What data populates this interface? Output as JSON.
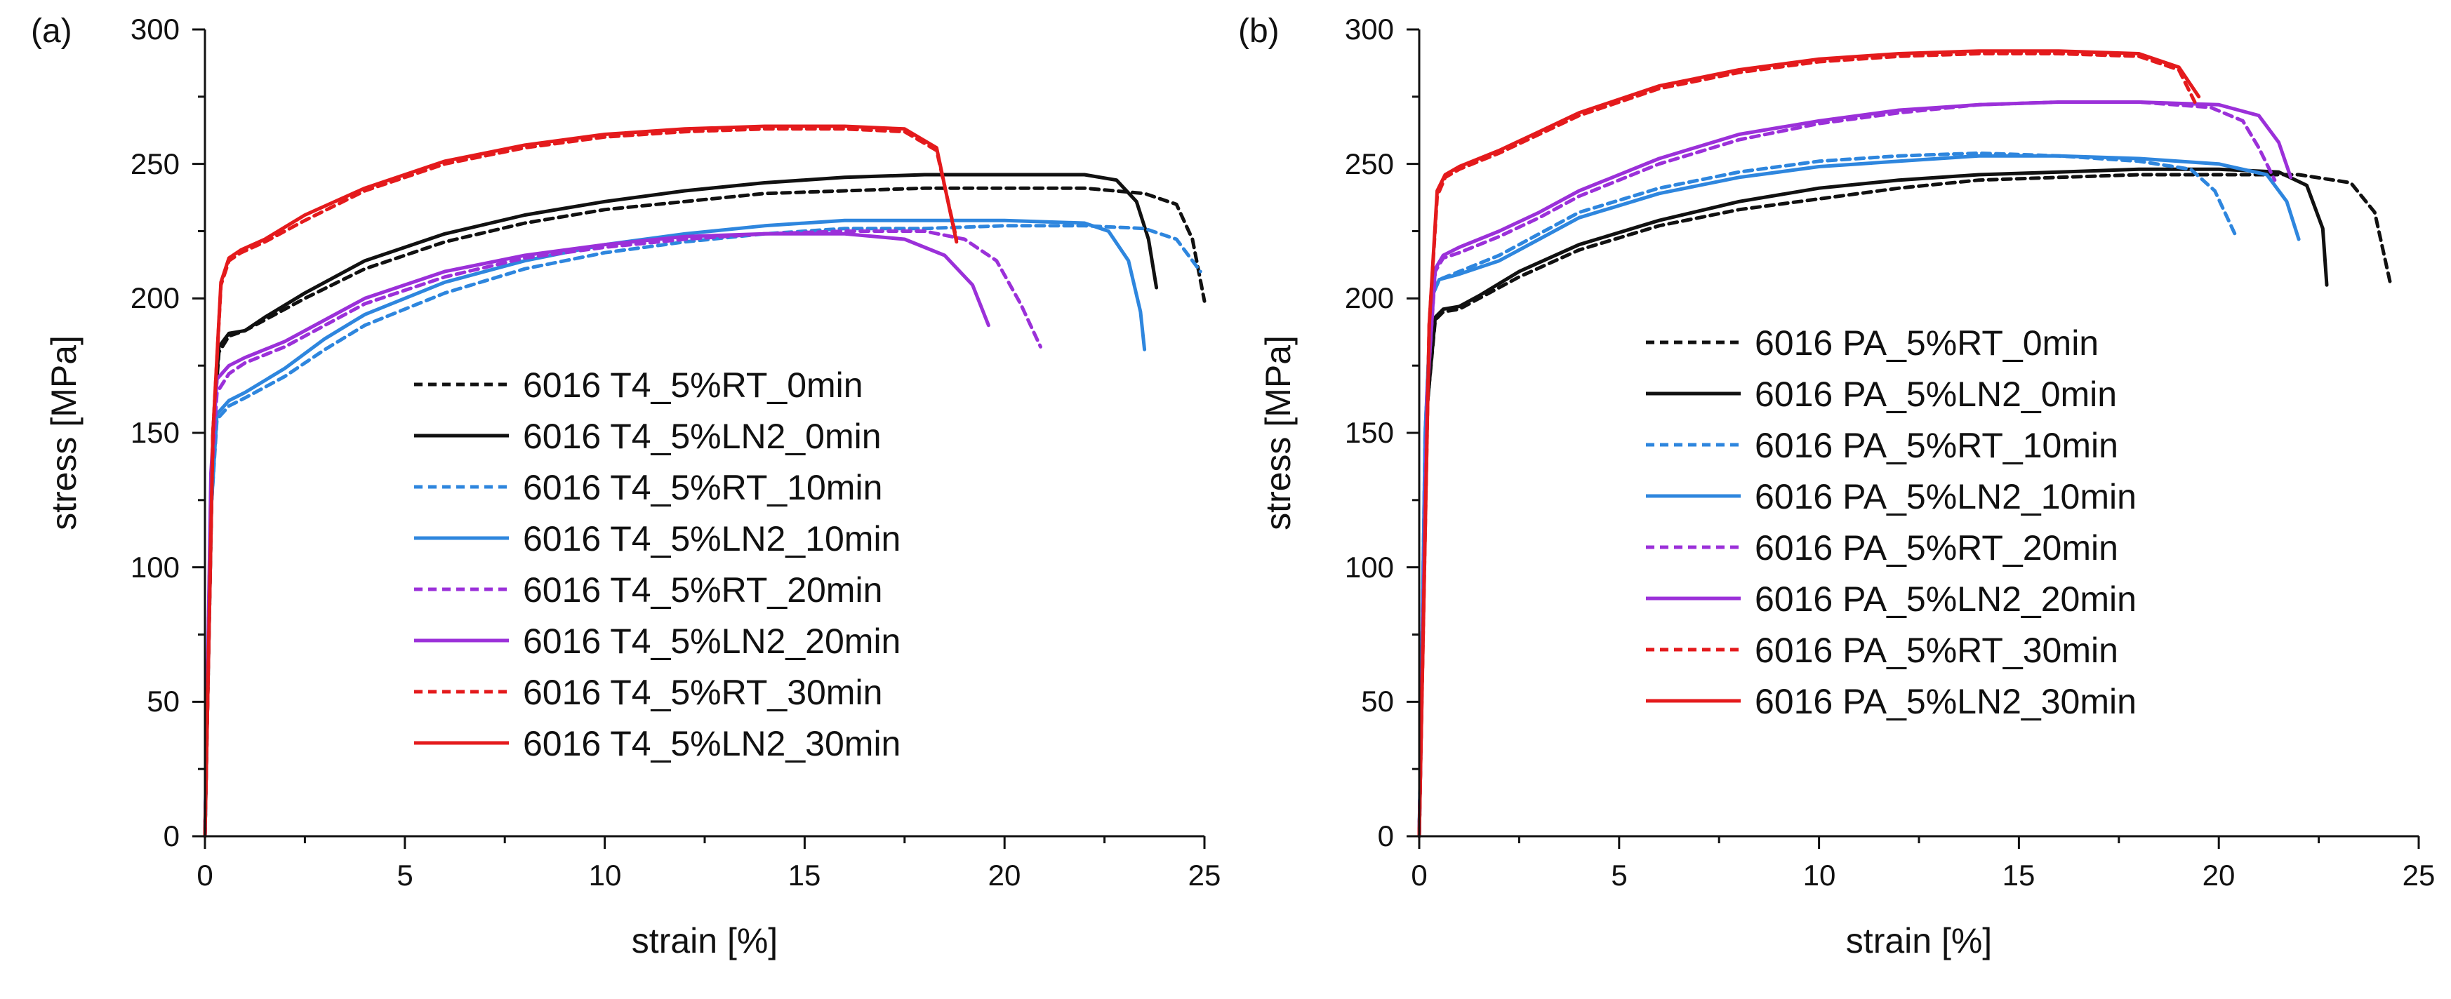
{
  "figure": {
    "colors": {
      "axis": "#111111"
    }
  },
  "chart_data": [
    {
      "panel_label": "(a)",
      "type": "line",
      "xlabel": "strain [%]",
      "ylabel": "stress [MPa]",
      "xlim": [
        0,
        25
      ],
      "ylim": [
        0,
        300
      ],
      "xticks": [
        "0",
        "5",
        "10",
        "15",
        "20",
        "25"
      ],
      "yticks": [
        "0",
        "50",
        "100",
        "150",
        "200",
        "250",
        "300"
      ],
      "grid": false,
      "legend_position": "center",
      "series": [
        {
          "name": "6016 T4_5%RT_0min",
          "color": "#111111",
          "style": "dashed",
          "x": [
            0,
            0.2,
            0.35,
            0.6,
            1.0,
            1.5,
            2.5,
            4,
            6,
            8,
            10,
            12,
            14,
            16,
            18,
            20,
            22,
            23.5,
            24.3,
            24.7,
            25.0
          ],
          "y": [
            0,
            150,
            180,
            186,
            188,
            192,
            200,
            211,
            221,
            228,
            233,
            236,
            239,
            240,
            241,
            241,
            241,
            239,
            235,
            222,
            199
          ]
        },
        {
          "name": "6016 T4_5%LN2_0min",
          "color": "#111111",
          "style": "solid",
          "x": [
            0,
            0.2,
            0.35,
            0.6,
            1.0,
            1.5,
            2.5,
            4,
            6,
            8,
            10,
            12,
            14,
            16,
            18,
            20,
            22,
            22.8,
            23.3,
            23.6,
            23.8
          ],
          "y": [
            0,
            150,
            182,
            187,
            188,
            193,
            202,
            214,
            224,
            231,
            236,
            240,
            243,
            245,
            246,
            246,
            246,
            244,
            236,
            222,
            204
          ]
        },
        {
          "name": "6016 T4_5%RT_10min",
          "color": "#2e86de",
          "style": "dashed",
          "x": [
            0,
            0.15,
            0.3,
            0.6,
            1,
            2,
            3,
            4,
            6,
            8,
            10,
            12,
            14,
            16,
            18,
            20,
            22,
            23.5,
            24.3,
            24.9
          ],
          "y": [
            0,
            120,
            155,
            160,
            163,
            171,
            181,
            190,
            202,
            211,
            217,
            221,
            224,
            226,
            226,
            227,
            227,
            226,
            222,
            210
          ]
        },
        {
          "name": "6016 T4_5%LN2_10min",
          "color": "#2e86de",
          "style": "solid",
          "x": [
            0,
            0.15,
            0.3,
            0.6,
            1,
            2,
            3,
            4,
            6,
            8,
            10,
            12,
            14,
            16,
            18,
            20,
            22,
            22.6,
            23.1,
            23.4,
            23.5
          ],
          "y": [
            0,
            120,
            157,
            162,
            165,
            174,
            185,
            194,
            206,
            214,
            220,
            224,
            227,
            229,
            229,
            229,
            228,
            225,
            214,
            195,
            181
          ]
        },
        {
          "name": "6016 T4_5%RT_20min",
          "color": "#9b30d9",
          "style": "dashed",
          "x": [
            0,
            0.15,
            0.3,
            0.6,
            1,
            2,
            3,
            4,
            6,
            8,
            10,
            12,
            14,
            16,
            18,
            19,
            19.8,
            20.4,
            20.9
          ],
          "y": [
            0,
            130,
            165,
            172,
            176,
            182,
            190,
            198,
            208,
            215,
            219,
            222,
            224,
            225,
            225,
            222,
            214,
            198,
            182
          ]
        },
        {
          "name": "6016 T4_5%LN2_20min",
          "color": "#9b30d9",
          "style": "solid",
          "x": [
            0,
            0.15,
            0.3,
            0.6,
            1,
            2,
            3,
            4,
            6,
            8,
            10,
            12,
            14,
            16,
            17.5,
            18.5,
            19.2,
            19.6
          ],
          "y": [
            0,
            135,
            170,
            175,
            178,
            184,
            192,
            200,
            210,
            216,
            220,
            223,
            224,
            224,
            222,
            216,
            205,
            190
          ]
        },
        {
          "name": "6016 T4_5%RT_30min",
          "color": "#e41a1c",
          "style": "dashed",
          "x": [
            0,
            0.2,
            0.4,
            0.6,
            0.9,
            1.5,
            2.5,
            4,
            6,
            8,
            10,
            12,
            14,
            16,
            17.5,
            18.3,
            18.8
          ],
          "y": [
            0,
            150,
            205,
            214,
            217,
            221,
            229,
            240,
            250,
            256,
            260,
            262,
            263,
            263,
            262,
            255,
            222
          ]
        },
        {
          "name": "6016 T4_5%LN2_30min",
          "color": "#e41a1c",
          "style": "solid",
          "x": [
            0,
            0.2,
            0.4,
            0.6,
            0.9,
            1.5,
            2.5,
            4,
            6,
            8,
            10,
            12,
            14,
            16,
            17.5,
            18.3,
            18.8
          ],
          "y": [
            0,
            150,
            206,
            215,
            218,
            222,
            231,
            241,
            251,
            257,
            261,
            263,
            264,
            264,
            263,
            256,
            221
          ]
        }
      ]
    },
    {
      "panel_label": "(b)",
      "type": "line",
      "xlabel": "strain [%]",
      "ylabel": "stress [MPa]",
      "xlim": [
        0,
        25
      ],
      "ylim": [
        0,
        300
      ],
      "xticks": [
        "0",
        "5",
        "10",
        "15",
        "20",
        "25"
      ],
      "yticks": [
        "0",
        "50",
        "100",
        "150",
        "200",
        "250",
        "300"
      ],
      "grid": false,
      "legend_position": "center-right",
      "series": [
        {
          "name": "6016 PA_5%RT_0min",
          "color": "#111111",
          "style": "dashed",
          "x": [
            0,
            0.2,
            0.4,
            0.6,
            1.0,
            1.5,
            2.5,
            4,
            6,
            8,
            10,
            12,
            14,
            16,
            18,
            20,
            22,
            23.3,
            23.9,
            24.3
          ],
          "y": [
            0,
            160,
            192,
            195,
            196,
            200,
            208,
            218,
            227,
            233,
            237,
            241,
            244,
            245,
            246,
            246,
            246,
            243,
            232,
            205
          ]
        },
        {
          "name": "6016 PA_5%LN2_0min",
          "color": "#111111",
          "style": "solid",
          "x": [
            0,
            0.2,
            0.4,
            0.6,
            1.0,
            1.5,
            2.5,
            4,
            6,
            8,
            10,
            12,
            14,
            16,
            18,
            20,
            21.5,
            22.2,
            22.6,
            22.7
          ],
          "y": [
            0,
            160,
            193,
            196,
            197,
            201,
            210,
            220,
            229,
            236,
            241,
            244,
            246,
            247,
            248,
            248,
            247,
            242,
            226,
            205
          ]
        },
        {
          "name": "6016 PA_5%RT_10min",
          "color": "#2e86de",
          "style": "dashed",
          "x": [
            0,
            0.15,
            0.3,
            0.5,
            1,
            2,
            3,
            4,
            6,
            8,
            10,
            12,
            14,
            16,
            18,
            19.3,
            19.9,
            20.4
          ],
          "y": [
            0,
            150,
            200,
            207,
            210,
            216,
            224,
            232,
            241,
            247,
            251,
            253,
            254,
            253,
            251,
            248,
            240,
            224
          ]
        },
        {
          "name": "6016 PA_5%LN2_10min",
          "color": "#2e86de",
          "style": "solid",
          "x": [
            0,
            0.15,
            0.3,
            0.5,
            1,
            2,
            3,
            4,
            6,
            8,
            10,
            12,
            14,
            16,
            18,
            20,
            21.2,
            21.7,
            22.0
          ],
          "y": [
            0,
            150,
            200,
            207,
            209,
            214,
            222,
            230,
            239,
            245,
            249,
            251,
            253,
            253,
            252,
            250,
            246,
            236,
            222
          ]
        },
        {
          "name": "6016 PA_5%RT_20min",
          "color": "#9b30d9",
          "style": "dashed",
          "x": [
            0,
            0.2,
            0.4,
            0.6,
            1,
            2,
            3,
            4,
            6,
            8,
            10,
            12,
            14,
            16,
            18,
            19.8,
            20.6,
            21.0,
            21.4
          ],
          "y": [
            0,
            165,
            210,
            215,
            217,
            223,
            230,
            238,
            250,
            259,
            265,
            269,
            272,
            273,
            273,
            271,
            266,
            256,
            244
          ]
        },
        {
          "name": "6016 PA_5%LN2_20min",
          "color": "#9b30d9",
          "style": "solid",
          "x": [
            0,
            0.2,
            0.4,
            0.6,
            1,
            2,
            3,
            4,
            6,
            8,
            10,
            12,
            14,
            16,
            18,
            20,
            21.0,
            21.5,
            21.8
          ],
          "y": [
            0,
            165,
            211,
            216,
            219,
            225,
            232,
            240,
            252,
            261,
            266,
            270,
            272,
            273,
            273,
            272,
            268,
            258,
            245
          ]
        },
        {
          "name": "6016 PA_5%RT_30min",
          "color": "#e41a1c",
          "style": "dashed",
          "x": [
            0,
            0.25,
            0.45,
            0.65,
            1,
            2,
            3,
            4,
            6,
            8,
            10,
            12,
            14,
            16,
            18,
            19.0,
            19.4
          ],
          "y": [
            0,
            190,
            238,
            245,
            248,
            254,
            261,
            268,
            278,
            284,
            288,
            290,
            291,
            291,
            290,
            285,
            273
          ]
        },
        {
          "name": "6016 PA_5%LN2_30min",
          "color": "#e41a1c",
          "style": "solid",
          "x": [
            0,
            0.25,
            0.45,
            0.65,
            1,
            2,
            3,
            4,
            6,
            8,
            10,
            12,
            14,
            16,
            18,
            19.0,
            19.5
          ],
          "y": [
            0,
            190,
            240,
            246,
            249,
            255,
            262,
            269,
            279,
            285,
            289,
            291,
            292,
            292,
            291,
            286,
            275
          ]
        }
      ]
    }
  ]
}
